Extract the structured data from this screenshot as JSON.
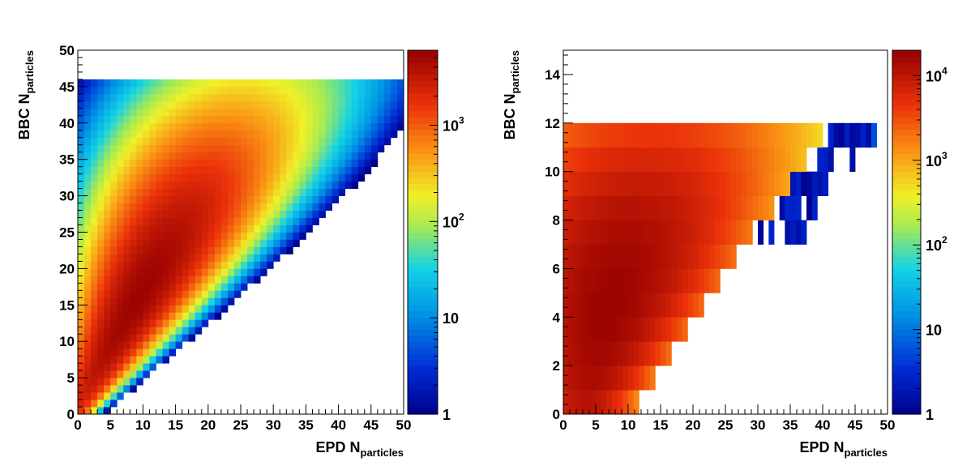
{
  "chart_data": [
    {
      "type": "heatmap",
      "title": "",
      "xlabel_main": "EPD N",
      "xlabel_sub": "particles",
      "ylabel_main": "BBC N",
      "ylabel_sub": "particles",
      "xlim": [
        0,
        50
      ],
      "ylim": [
        0,
        50
      ],
      "x_bins": 50,
      "y_bins": 50,
      "x_ticks": [
        "0",
        "5",
        "10",
        "15",
        "20",
        "25",
        "30",
        "35",
        "40",
        "45",
        "50"
      ],
      "y_ticks": [
        "0",
        "5",
        "10",
        "15",
        "20",
        "25",
        "30",
        "35",
        "40",
        "45",
        "50"
      ],
      "z_scale": "log",
      "zlim": [
        1,
        6000
      ],
      "z_ticks": [
        {
          "base": "1",
          "exp": ""
        },
        {
          "base": "10",
          "exp": ""
        },
        {
          "base": "10",
          "exp": "2"
        },
        {
          "base": "10",
          "exp": "3"
        }
      ],
      "z_tick_values": [
        1,
        10,
        100,
        1000
      ],
      "distribution": {
        "description_model": "ridge",
        "peak_x": 6,
        "peak_y": 17,
        "peak_count": 5500,
        "ridge_slope": 1.6,
        "ridge_spread_x": 5.5,
        "upper_y": 45
      }
    },
    {
      "type": "heatmap",
      "title": "",
      "xlabel_main": "EPD N",
      "xlabel_sub": "particles",
      "ylabel_main": "BBC N",
      "ylabel_sub": "particles",
      "xlim": [
        0,
        50
      ],
      "ylim": [
        0,
        15
      ],
      "x_bins": 60,
      "y_bins": 15,
      "x_ticks": [
        "0",
        "5",
        "10",
        "15",
        "20",
        "25",
        "30",
        "35",
        "40",
        "45",
        "50"
      ],
      "y_ticks": [
        "0",
        "2",
        "4",
        "6",
        "8",
        "10",
        "12",
        "14"
      ],
      "y_tick_values": [
        0,
        2,
        4,
        6,
        8,
        10,
        12,
        14
      ],
      "z_scale": "log",
      "zlim": [
        1,
        20000
      ],
      "z_ticks": [
        {
          "base": "1",
          "exp": ""
        },
        {
          "base": "10",
          "exp": ""
        },
        {
          "base": "10",
          "exp": "2"
        },
        {
          "base": "10",
          "exp": "3"
        },
        {
          "base": "10",
          "exp": "4"
        }
      ],
      "z_tick_values": [
        1,
        10,
        100,
        1000,
        10000
      ],
      "distribution": {
        "description_model": "rows",
        "max_y": 12,
        "peak_count": 18000
      }
    }
  ]
}
